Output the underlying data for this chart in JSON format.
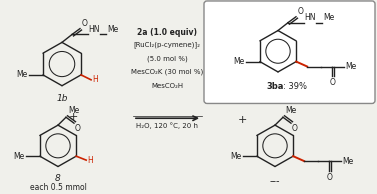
{
  "bg_color": "#f0f0eb",
  "box_color": "#888888",
  "reaction_conditions_bold": "2a (1.0 equiv)",
  "reaction_conditions": [
    "[RuCl₂(p-cymene)]₂",
    "(5.0 mol %)",
    "MesCO₂K (30 mol %)",
    "MesCO₂H"
  ],
  "reaction_conditions_bottom": "H₂O, 120 °C, 20 h",
  "label_1b": "1b",
  "label_8": "8",
  "label_3ba": "3ba",
  "label_3ba_pct": ": 39%",
  "label_each": "each 0.5 mmol",
  "red_color": "#cc2200",
  "black": "#222222",
  "gray": "#999999"
}
